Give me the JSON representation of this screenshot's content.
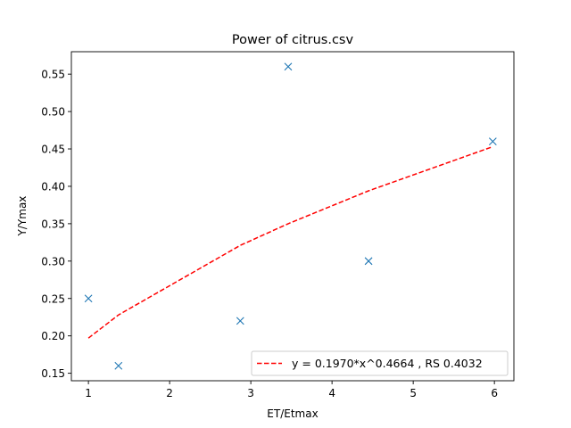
{
  "chart_data": {
    "type": "scatter",
    "title": "Power of citrus.csv",
    "xlabel": "ET/Etmax",
    "ylabel": "Y/Ymax",
    "xlim": [
      0.79,
      6.24
    ],
    "ylim": [
      0.14,
      0.58
    ],
    "xticks": [
      1,
      2,
      3,
      4,
      5,
      6
    ],
    "yticks": [
      0.15,
      0.2,
      0.25,
      0.3,
      0.35,
      0.4,
      0.45,
      0.5,
      0.55
    ],
    "xtick_labels": [
      "1",
      "2",
      "3",
      "4",
      "5",
      "6"
    ],
    "ytick_labels": [
      "0.15",
      "0.20",
      "0.25",
      "0.30",
      "0.35",
      "0.40",
      "0.45",
      "0.50",
      "0.55"
    ],
    "grid": false,
    "legend_position": "bottom-right",
    "series": [
      {
        "kind": "scatter",
        "marker": "x",
        "color": "#1f77b4",
        "points": [
          {
            "x": 1.0,
            "y": 0.25
          },
          {
            "x": 1.37,
            "y": 0.16
          },
          {
            "x": 2.87,
            "y": 0.22
          },
          {
            "x": 3.46,
            "y": 0.56
          },
          {
            "x": 4.45,
            "y": 0.3
          },
          {
            "x": 5.98,
            "y": 0.46
          }
        ]
      },
      {
        "kind": "line",
        "style": "dashed",
        "color": "#ff0000",
        "name": "y = 0.1970*x^0.4664 , RS 0.4032",
        "points": [
          {
            "x": 1.0,
            "y": 0.197
          },
          {
            "x": 1.37,
            "y": 0.228
          },
          {
            "x": 2.87,
            "y": 0.321
          },
          {
            "x": 3.46,
            "y": 0.35
          },
          {
            "x": 4.45,
            "y": 0.394
          },
          {
            "x": 5.98,
            "y": 0.453
          }
        ]
      }
    ]
  }
}
